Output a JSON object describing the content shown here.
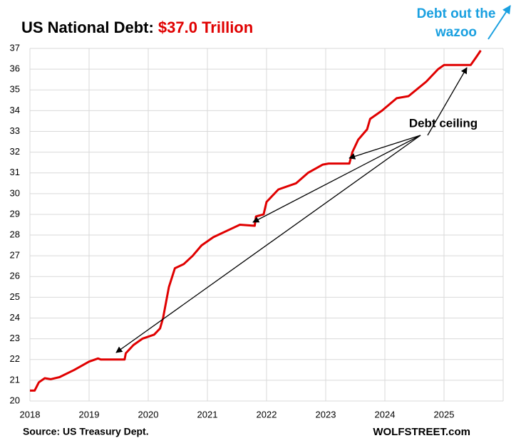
{
  "chart_data": {
    "type": "line",
    "title": "US National Debt: ",
    "title_highlight": "$37.0 Trillion",
    "source": "Source: US Treasury Dept.",
    "credit": "WOLFSTREET.com",
    "annotations": [
      "Debt out the",
      "wazoo",
      "Debt ceiling"
    ],
    "xlim": [
      2018,
      2026
    ],
    "xticks": [
      2018,
      2019,
      2020,
      2021,
      2022,
      2023,
      2024,
      2025
    ],
    "ylim": [
      20,
      37
    ],
    "yticks": [
      20,
      21,
      22,
      23,
      24,
      25,
      26,
      27,
      28,
      29,
      30,
      31,
      32,
      33,
      34,
      35,
      36,
      37
    ],
    "grid": true,
    "series": [
      {
        "name": "US National Debt",
        "color": "#e00000",
        "x": [
          2018.0,
          2018.08,
          2018.15,
          2018.25,
          2018.35,
          2018.5,
          2018.75,
          2019.0,
          2019.15,
          2019.2,
          2019.6,
          2019.62,
          2019.75,
          2019.9,
          2020.1,
          2020.2,
          2020.25,
          2020.35,
          2020.45,
          2020.6,
          2020.75,
          2020.9,
          2021.1,
          2021.4,
          2021.55,
          2021.8,
          2021.82,
          2021.95,
          2022.0,
          2022.2,
          2022.5,
          2022.7,
          2022.95,
          2023.05,
          2023.4,
          2023.45,
          2023.55,
          2023.7,
          2023.75,
          2023.95,
          2024.2,
          2024.4,
          2024.7,
          2024.9,
          2025.0,
          2025.2,
          2025.45,
          2025.55,
          2025.62
        ],
        "values": [
          20.5,
          20.5,
          20.9,
          21.1,
          21.05,
          21.15,
          21.5,
          21.9,
          22.05,
          22.0,
          22.0,
          22.3,
          22.7,
          23.0,
          23.2,
          23.5,
          24.0,
          25.5,
          26.4,
          26.6,
          27.0,
          27.5,
          27.9,
          28.3,
          28.5,
          28.45,
          28.9,
          29.0,
          29.6,
          30.2,
          30.5,
          31.0,
          31.4,
          31.45,
          31.45,
          32.0,
          32.6,
          33.1,
          33.6,
          34.0,
          34.6,
          34.7,
          35.4,
          36.0,
          36.2,
          36.2,
          36.2,
          36.6,
          36.9
        ]
      }
    ]
  }
}
